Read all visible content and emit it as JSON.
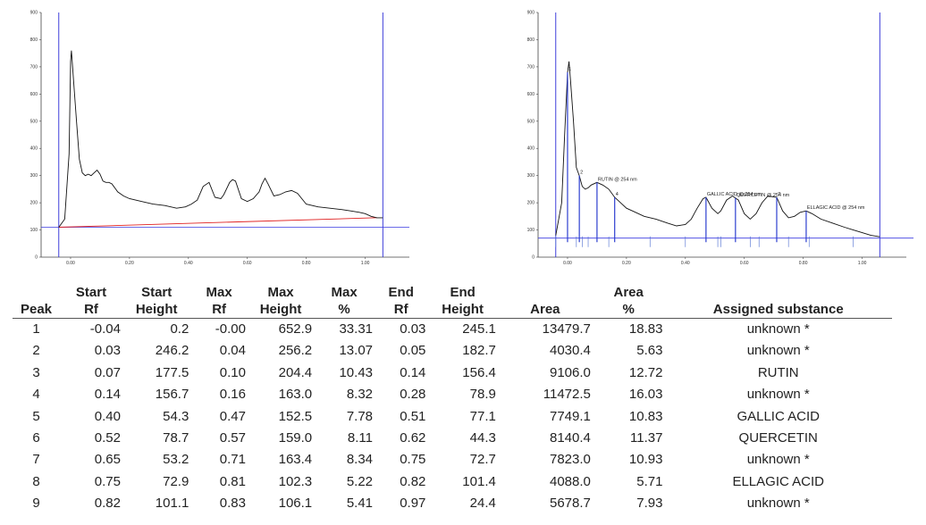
{
  "chart_data": [
    {
      "type": "line",
      "title": "",
      "x_ticks": [
        "0.00",
        "0.20",
        "0.40",
        "0.60",
        "0.80",
        "1.00"
      ],
      "y_ticks": [
        "0",
        "100",
        "200",
        "300",
        "400",
        "500",
        "600",
        "700",
        "800",
        "900"
      ],
      "xlim": [
        -0.1,
        1.15
      ],
      "ylim": [
        0,
        900
      ],
      "start_line_rf": -0.04,
      "end_line_rf": 1.06,
      "series": [
        {
          "points": [
            [
              -0.04,
              110
            ],
            [
              -0.02,
              140
            ],
            [
              -0.005,
              380
            ],
            [
              0.0,
              720
            ],
            [
              0.003,
              760
            ],
            [
              0.01,
              650
            ],
            [
              0.02,
              500
            ],
            [
              0.03,
              360
            ],
            [
              0.04,
              310
            ],
            [
              0.05,
              300
            ],
            [
              0.06,
              305
            ],
            [
              0.07,
              300
            ],
            [
              0.08,
              310
            ],
            [
              0.09,
              320
            ],
            [
              0.1,
              305
            ],
            [
              0.11,
              280
            ],
            [
              0.12,
              275
            ],
            [
              0.13,
              275
            ],
            [
              0.14,
              270
            ],
            [
              0.16,
              240
            ],
            [
              0.18,
              225
            ],
            [
              0.2,
              215
            ],
            [
              0.24,
              205
            ],
            [
              0.28,
              195
            ],
            [
              0.32,
              190
            ],
            [
              0.36,
              180
            ],
            [
              0.39,
              185
            ],
            [
              0.41,
              195
            ],
            [
              0.43,
              210
            ],
            [
              0.45,
              260
            ],
            [
              0.47,
              275
            ],
            [
              0.49,
              220
            ],
            [
              0.51,
              215
            ],
            [
              0.52,
              230
            ],
            [
              0.54,
              275
            ],
            [
              0.55,
              285
            ],
            [
              0.56,
              280
            ],
            [
              0.58,
              215
            ],
            [
              0.6,
              205
            ],
            [
              0.62,
              215
            ],
            [
              0.64,
              240
            ],
            [
              0.65,
              270
            ],
            [
              0.66,
              290
            ],
            [
              0.67,
              270
            ],
            [
              0.69,
              225
            ],
            [
              0.71,
              230
            ],
            [
              0.73,
              240
            ],
            [
              0.75,
              245
            ],
            [
              0.77,
              235
            ],
            [
              0.8,
              195
            ],
            [
              0.84,
              185
            ],
            [
              0.88,
              180
            ],
            [
              0.92,
              175
            ],
            [
              0.95,
              170
            ],
            [
              0.98,
              165
            ],
            [
              1.0,
              160
            ],
            [
              1.02,
              150
            ],
            [
              1.04,
              145
            ],
            [
              1.06,
              145
            ]
          ]
        },
        {
          "points": [
            [
              -0.04,
              110
            ],
            [
              1.04,
              145
            ]
          ]
        }
      ]
    },
    {
      "type": "line",
      "title": "",
      "x_ticks": [
        "0.00",
        "0.20",
        "0.40",
        "0.60",
        "0.80",
        "1.00"
      ],
      "y_ticks": [
        "0",
        "100",
        "200",
        "300",
        "400",
        "500",
        "600",
        "700",
        "800",
        "900"
      ],
      "xlim": [
        -0.1,
        1.15
      ],
      "ylim": [
        0,
        900
      ],
      "start_line_rf": -0.04,
      "end_line_rf": 1.06,
      "baseline": 70,
      "series": [
        {
          "points": [
            [
              -0.04,
              80
            ],
            [
              -0.02,
              200
            ],
            [
              -0.01,
              450
            ],
            [
              0.0,
              680
            ],
            [
              0.005,
              720
            ],
            [
              0.01,
              650
            ],
            [
              0.02,
              500
            ],
            [
              0.03,
              330
            ],
            [
              0.04,
              300
            ],
            [
              0.05,
              260
            ],
            [
              0.06,
              250
            ],
            [
              0.07,
              255
            ],
            [
              0.08,
              265
            ],
            [
              0.1,
              275
            ],
            [
              0.12,
              265
            ],
            [
              0.14,
              250
            ],
            [
              0.16,
              220
            ],
            [
              0.18,
              200
            ],
            [
              0.2,
              180
            ],
            [
              0.22,
              170
            ],
            [
              0.26,
              150
            ],
            [
              0.3,
              140
            ],
            [
              0.34,
              125
            ],
            [
              0.37,
              115
            ],
            [
              0.4,
              120
            ],
            [
              0.42,
              140
            ],
            [
              0.44,
              180
            ],
            [
              0.46,
              215
            ],
            [
              0.47,
              220
            ],
            [
              0.49,
              180
            ],
            [
              0.51,
              160
            ],
            [
              0.52,
              170
            ],
            [
              0.54,
              210
            ],
            [
              0.56,
              225
            ],
            [
              0.58,
              210
            ],
            [
              0.6,
              160
            ],
            [
              0.62,
              140
            ],
            [
              0.64,
              160
            ],
            [
              0.66,
              200
            ],
            [
              0.68,
              225
            ],
            [
              0.71,
              220
            ],
            [
              0.73,
              170
            ],
            [
              0.75,
              145
            ],
            [
              0.77,
              150
            ],
            [
              0.79,
              165
            ],
            [
              0.81,
              170
            ],
            [
              0.83,
              160
            ],
            [
              0.86,
              140
            ],
            [
              0.9,
              125
            ],
            [
              0.94,
              110
            ],
            [
              0.97,
              100
            ],
            [
              1.0,
              90
            ],
            [
              1.03,
              80
            ],
            [
              1.06,
              75
            ]
          ]
        }
      ],
      "peak_markers": [
        {
          "rf": -0.0,
          "label": "1"
        },
        {
          "rf": 0.04,
          "label": "2"
        },
        {
          "rf": 0.1,
          "label": "RUTIN @ 254 nm"
        },
        {
          "rf": 0.16,
          "label": "4"
        },
        {
          "rf": 0.47,
          "label": "GALLIC ACID @ 254 nm"
        },
        {
          "rf": 0.57,
          "label": "QUERCETIN @ 254 nm"
        },
        {
          "rf": 0.71,
          "label": "7"
        },
        {
          "rf": 0.81,
          "label": "ELLAGIC ACID @ 254 nm"
        }
      ],
      "boundaries": [
        -0.04,
        0.03,
        0.05,
        0.07,
        0.14,
        0.28,
        0.4,
        0.51,
        0.52,
        0.62,
        0.65,
        0.75,
        0.82,
        0.97
      ]
    }
  ],
  "table": {
    "headers": [
      [
        "",
        "Peak"
      ],
      [
        "Start",
        "Rf"
      ],
      [
        "Start",
        "Height"
      ],
      [
        "Max",
        "Rf"
      ],
      [
        "Max",
        "Height"
      ],
      [
        "Max",
        "%"
      ],
      [
        "End",
        "Rf"
      ],
      [
        "End",
        "Height"
      ],
      [
        "",
        "Area"
      ],
      [
        "Area",
        "%"
      ],
      [
        "",
        "Assigned substance"
      ]
    ],
    "rows": [
      [
        "1",
        "-0.04",
        "0.2",
        "-0.00",
        "652.9",
        "33.31",
        "0.03",
        "245.1",
        "13479.7",
        "18.83",
        "unknown *"
      ],
      [
        "2",
        "0.03",
        "246.2",
        "0.04",
        "256.2",
        "13.07",
        "0.05",
        "182.7",
        "4030.4",
        "5.63",
        "unknown *"
      ],
      [
        "3",
        "0.07",
        "177.5",
        "0.10",
        "204.4",
        "10.43",
        "0.14",
        "156.4",
        "9106.0",
        "12.72",
        "RUTIN"
      ],
      [
        "4",
        "0.14",
        "156.7",
        "0.16",
        "163.0",
        "8.32",
        "0.28",
        "78.9",
        "11472.5",
        "16.03",
        "unknown *"
      ],
      [
        "5",
        "0.40",
        "54.3",
        "0.47",
        "152.5",
        "7.78",
        "0.51",
        "77.1",
        "7749.1",
        "10.83",
        "GALLIC ACID"
      ],
      [
        "6",
        "0.52",
        "78.7",
        "0.57",
        "159.0",
        "8.11",
        "0.62",
        "44.3",
        "8140.4",
        "11.37",
        "QUERCETIN"
      ],
      [
        "7",
        "0.65",
        "53.2",
        "0.71",
        "163.4",
        "8.34",
        "0.75",
        "72.7",
        "7823.0",
        "10.93",
        "unknown *"
      ],
      [
        "8",
        "0.75",
        "72.9",
        "0.81",
        "102.3",
        "5.22",
        "0.82",
        "101.4",
        "4088.0",
        "5.71",
        "ELLAGIC ACID"
      ],
      [
        "9",
        "0.82",
        "101.1",
        "0.83",
        "106.1",
        "5.41",
        "0.97",
        "24.4",
        "5678.7",
        "7.93",
        "unknown *"
      ]
    ]
  },
  "colors": {
    "trace": "#111111",
    "start_end_lines": "#2b2bd6",
    "baseline_red": "#e02020",
    "baseline_blue": "#3a3ae0",
    "boundary": "#4a6ad0"
  }
}
